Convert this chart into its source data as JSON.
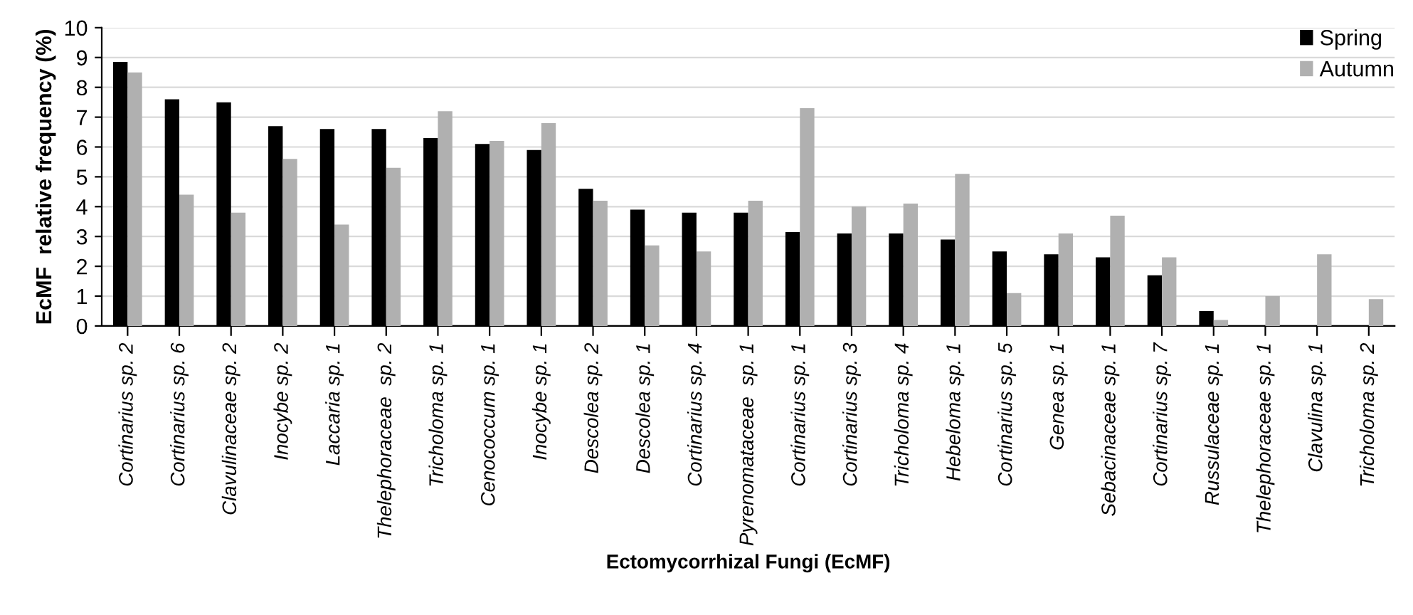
{
  "chart_data": {
    "type": "bar",
    "xlabel": "Ectomycorrhizal Fungi (EcMF)",
    "ylabel": "EcMF  relative frequency (%)",
    "categories": [
      "Cortinarius sp. 2",
      "Cortinarius sp. 6",
      "Clavulinaceae sp. 2",
      "Inocybe sp. 2",
      "Laccaria sp. 1",
      "Thelephoraceae  sp. 2",
      "Tricholoma sp. 1",
      "Cenococcum sp. 1",
      "Inocybe sp. 1",
      "Descolea sp. 2",
      "Descolea sp. 1",
      "Cortinarius sp. 4",
      "Pyrenomataceae  sp. 1",
      "Cortinarius sp. 1",
      "Cortinarius sp. 3",
      "Tricholoma sp. 4",
      "Hebeloma sp. 1",
      "Cortinarius sp. 5",
      "Genea sp. 1",
      "Sebacinaceae sp. 1",
      "Cortinarius sp. 7",
      "Russulaceae sp. 1",
      "Thelephoraceae sp. 1",
      "Clavulina sp. 1",
      "Tricholoma sp. 2"
    ],
    "series": [
      {
        "name": "Spring",
        "color": "#000000",
        "values": [
          8.85,
          7.6,
          7.5,
          6.7,
          6.6,
          6.6,
          6.3,
          6.1,
          5.9,
          4.6,
          3.9,
          3.8,
          3.8,
          3.15,
          3.1,
          3.1,
          2.9,
          2.5,
          2.4,
          2.3,
          1.7,
          0.5,
          0,
          0,
          0
        ]
      },
      {
        "name": "Autumn",
        "color": "#b0b0b0",
        "values": [
          8.5,
          4.4,
          3.8,
          5.6,
          3.4,
          5.3,
          7.2,
          6.2,
          6.8,
          4.2,
          2.7,
          2.5,
          4.2,
          7.3,
          4.0,
          4.1,
          5.1,
          1.1,
          3.1,
          3.7,
          2.3,
          0.2,
          1.0,
          2.4,
          0.9
        ]
      }
    ],
    "ylim": [
      0,
      10
    ],
    "yticks": [
      0,
      1,
      2,
      3,
      4,
      5,
      6,
      7,
      8,
      9,
      10
    ],
    "grid": "y",
    "legend": "top right"
  }
}
